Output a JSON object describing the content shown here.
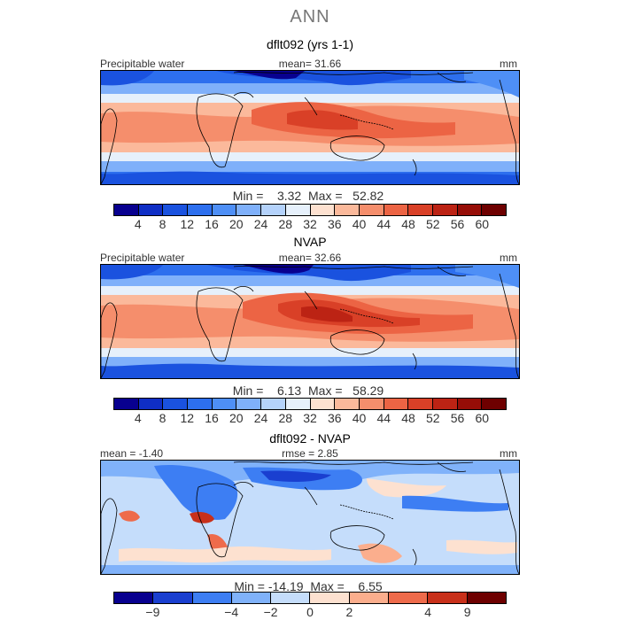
{
  "season": "ANN",
  "panels": [
    {
      "title": "dflt092 (yrs 1-1)",
      "left_label": "Precipitable water",
      "center_label": "mean=   31.66",
      "units": "mm",
      "min_max": "Min =    3.32  Max =   52.82",
      "colorbar_ticks": [
        "4",
        "8",
        "12",
        "16",
        "20",
        "24",
        "28",
        "32",
        "36",
        "40",
        "44",
        "48",
        "52",
        "56",
        "60"
      ],
      "colors": [
        "#08008f",
        "#0f2ec5",
        "#1a52df",
        "#2d6fee",
        "#4e8ff6",
        "#7fb0fa",
        "#b4d2fb",
        "#e6f0fb",
        "#fde1d0",
        "#fbb99b",
        "#f58e6c",
        "#ec6444",
        "#d94027",
        "#bc2314",
        "#960d07",
        "#6e0000"
      ]
    },
    {
      "title": "NVAP",
      "left_label": "Precipitable water",
      "center_label": "mean=   32.66",
      "units": "mm",
      "min_max": "Min =    6.13  Max =   58.29",
      "colorbar_ticks": [
        "4",
        "8",
        "12",
        "16",
        "20",
        "24",
        "28",
        "32",
        "36",
        "40",
        "44",
        "48",
        "52",
        "56",
        "60"
      ],
      "colors": [
        "#08008f",
        "#0f2ec5",
        "#1a52df",
        "#2d6fee",
        "#4e8ff6",
        "#7fb0fa",
        "#b4d2fb",
        "#e6f0fb",
        "#fde1d0",
        "#fbb99b",
        "#f58e6c",
        "#ec6444",
        "#d94027",
        "#bc2314",
        "#960d07",
        "#6e0000"
      ]
    },
    {
      "title": "dflt092 - NVAP",
      "left_label": "mean =   -1.40",
      "center_label": "rmse =    2.85",
      "units": "mm",
      "min_max": "Min = -14.19  Max =    6.55",
      "colorbar_ticks": [
        "-9",
        "-4",
        "-2",
        "0",
        "2",
        "4",
        "9"
      ],
      "colors": [
        "#08008f",
        "#1a3fd0",
        "#3d7ef3",
        "#80b2fa",
        "#c5ddfb",
        "#fde1d0",
        "#fbae8d",
        "#ee6b4b",
        "#c8301a",
        "#6e0000"
      ]
    }
  ]
}
